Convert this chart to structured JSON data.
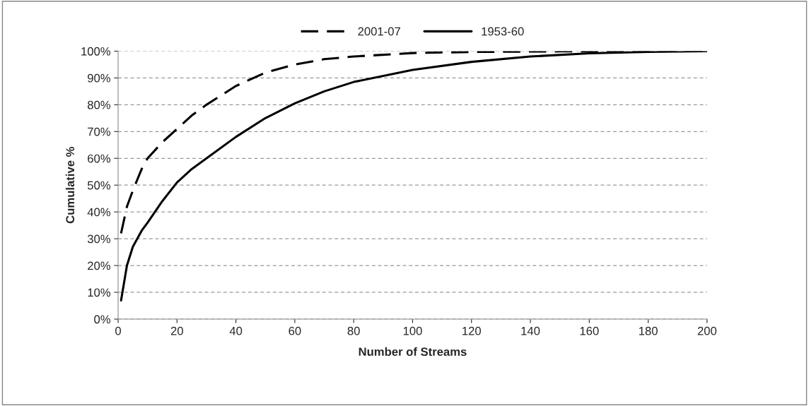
{
  "chart_data": {
    "type": "line",
    "xlabel": "Number of Streams",
    "ylabel": "Cumulative %",
    "xlim": [
      0,
      200
    ],
    "xticks": [
      0,
      20,
      40,
      60,
      80,
      100,
      120,
      140,
      160,
      180,
      200
    ],
    "ylim": [
      0,
      100
    ],
    "yticks": [
      {
        "value": 0,
        "label": "0%"
      },
      {
        "value": 10,
        "label": "10%"
      },
      {
        "value": 20,
        "label": "20%"
      },
      {
        "value": 30,
        "label": "30%"
      },
      {
        "value": 40,
        "label": "40%"
      },
      {
        "value": 50,
        "label": "50%"
      },
      {
        "value": 60,
        "label": "60%"
      },
      {
        "value": 70,
        "label": "70%"
      },
      {
        "value": 80,
        "label": "80%"
      },
      {
        "value": 90,
        "label": "90%"
      },
      {
        "value": 100,
        "label": "100%"
      }
    ],
    "grid": "y",
    "legend": "top",
    "marker": "none",
    "series": [
      {
        "name": "2001-07",
        "color": "#000000",
        "line_style": "dashed",
        "x": [
          1,
          3,
          5,
          8,
          10,
          15,
          20,
          25,
          30,
          40,
          50,
          60,
          70,
          80,
          100,
          120,
          150,
          200
        ],
        "values": [
          32,
          42,
          48,
          56,
          60,
          66,
          71,
          76,
          80,
          87,
          92,
          95,
          97,
          98,
          99.3,
          99.7,
          99.9,
          100
        ]
      },
      {
        "name": "1953-60",
        "color": "#000000",
        "line_style": "solid",
        "x": [
          1,
          3,
          5,
          8,
          10,
          15,
          20,
          25,
          30,
          40,
          50,
          60,
          70,
          80,
          100,
          120,
          140,
          160,
          180,
          200
        ],
        "values": [
          7,
          20,
          27,
          33,
          36,
          44,
          51,
          56,
          60,
          68,
          75,
          80.5,
          85,
          88.5,
          93,
          96,
          98,
          99.2,
          99.7,
          100
        ]
      }
    ]
  }
}
